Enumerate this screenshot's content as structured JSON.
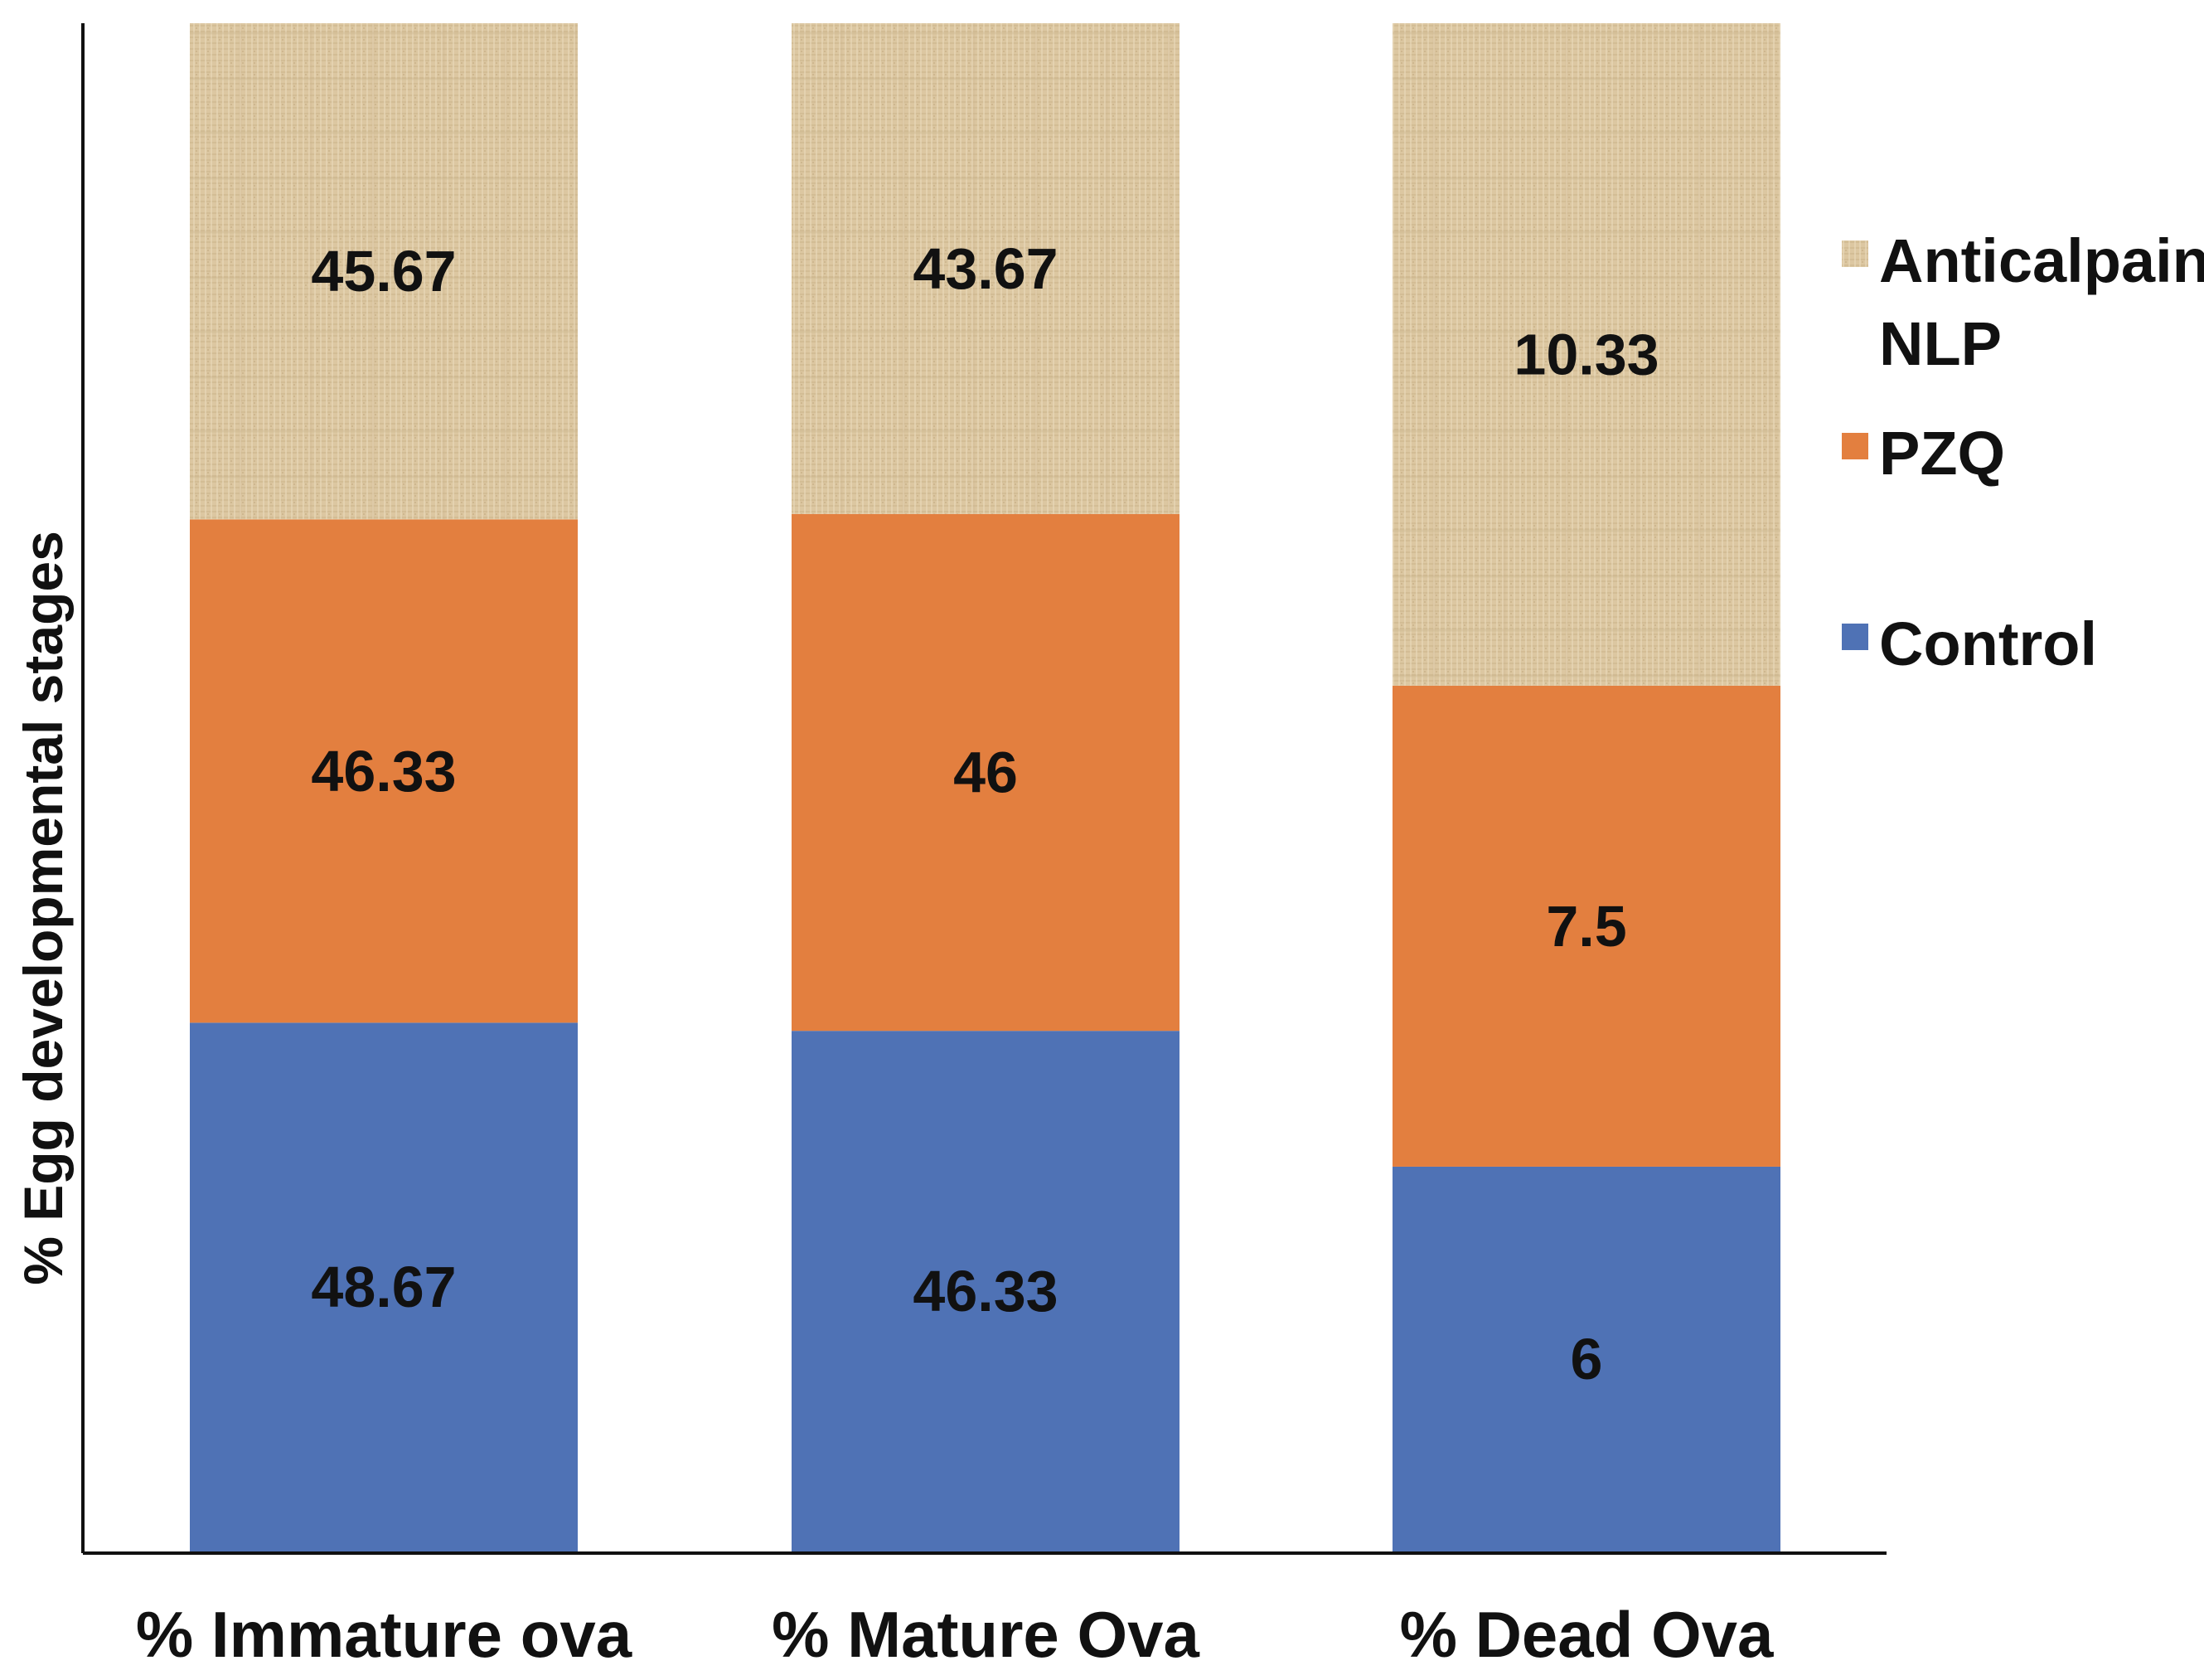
{
  "chart_data": {
    "type": "bar",
    "stacked": true,
    "normalized_to_percent": true,
    "ylabel": "% Egg developmental stages",
    "xlabel": "",
    "categories": [
      "% Immature ova",
      "% Mature Ova",
      "% Dead Ova"
    ],
    "series": [
      {
        "name": "Control",
        "values": [
          48.67,
          46.33,
          6
        ],
        "color": "#4f72b5",
        "labels": [
          "48.67",
          "46.33",
          "6"
        ]
      },
      {
        "name": "PZQ",
        "values": [
          46.33,
          46,
          7.5
        ],
        "color": "#e37f3f",
        "labels": [
          "46.33",
          "46",
          "7.5"
        ]
      },
      {
        "name": "Anticalpain-NLP",
        "values": [
          45.67,
          43.67,
          10.33
        ],
        "color": "#dcc6a0",
        "labels": [
          "45.67",
          "43.67",
          "10.33"
        ]
      }
    ],
    "legend": {
      "position": "right",
      "order": [
        "Anticalpain-NLP",
        "PZQ",
        "Control"
      ],
      "lines": {
        "Anticalpain-NLP": [
          "Anticalpain-",
          "NLP"
        ],
        "PZQ": [
          "PZQ"
        ],
        "Control": [
          "Control"
        ]
      }
    },
    "grid": false,
    "bar_texture": {
      "Anticalpain-NLP": "burlap"
    }
  }
}
